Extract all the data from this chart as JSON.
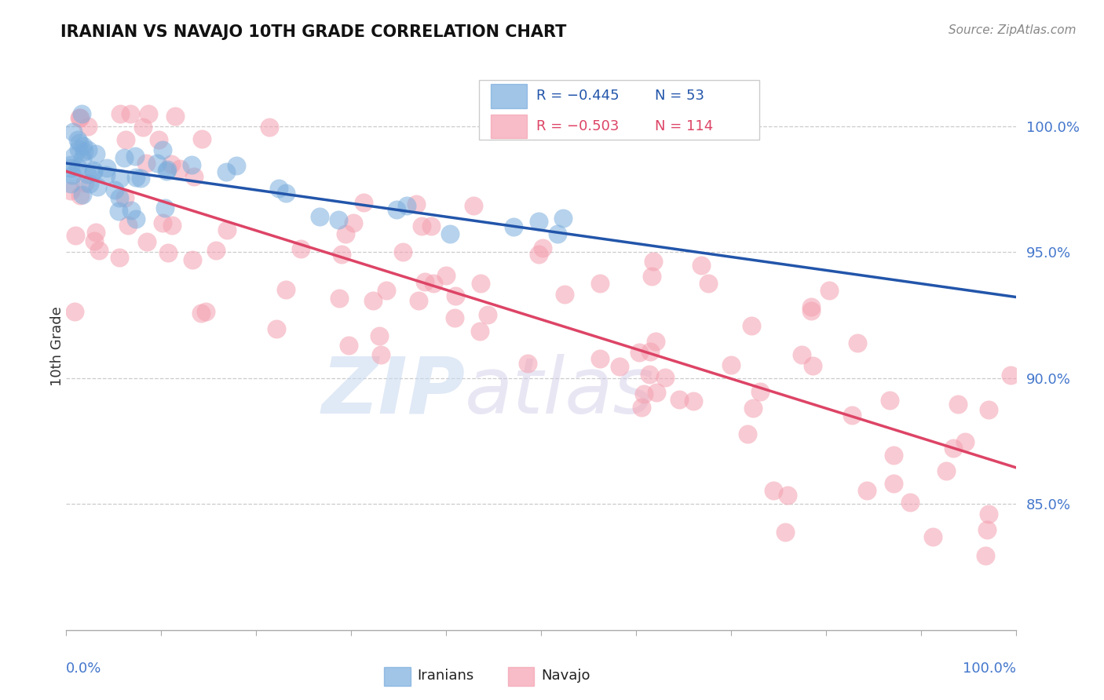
{
  "title": "IRANIAN VS NAVAJO 10TH GRADE CORRELATION CHART",
  "source_text": "Source: ZipAtlas.com",
  "ylabel": "10th Grade",
  "iranian_color": "#7AADDD",
  "navajo_color": "#F4A0B0",
  "iranian_line_color": "#2255AA",
  "navajo_line_color": "#DD4466",
  "background_color": "#FFFFFF",
  "x_range": [
    0.0,
    1.0
  ],
  "y_range": [
    0.8,
    1.025
  ],
  "ytick_vals": [
    0.85,
    0.9,
    0.95,
    1.0
  ],
  "ytick_labels": [
    "85.0%",
    "90.0%",
    "95.0%",
    "100.0%"
  ],
  "legend_iranian_r": "R = −0.445",
  "legend_iranian_n": "N = 53",
  "legend_navajo_r": "R = −0.503",
  "legend_navajo_n": "N = 114",
  "watermark_zip": "ZIP",
  "watermark_atlas": "atlas",
  "iran_seed": 42,
  "nav_seed": 99
}
